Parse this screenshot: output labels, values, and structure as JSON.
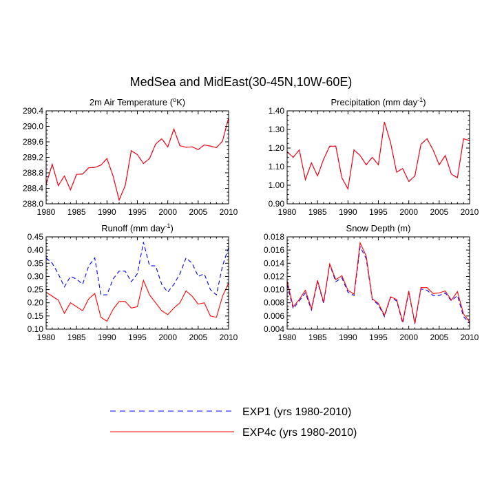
{
  "figure": {
    "main_title": "MedSea and MidEast(30-45N,10W-60E)",
    "legend": [
      {
        "label": "EXP1 (yrs 1980-2010)",
        "color": "#0000ff",
        "dash": "dashed"
      },
      {
        "label": "EXP4c (yrs 1980-2010)",
        "color": "#ff0000",
        "dash": "solid"
      }
    ]
  },
  "chart_data": [
    {
      "type": "line",
      "title_main": "2m Air Temperature (",
      "title_sup": "o",
      "title_rest": "K)",
      "x": [
        1980,
        1981,
        1982,
        1983,
        1984,
        1985,
        1986,
        1987,
        1988,
        1989,
        1990,
        1991,
        1992,
        1993,
        1994,
        1995,
        1996,
        1997,
        1998,
        1999,
        2000,
        2001,
        2002,
        2003,
        2004,
        2005,
        2006,
        2007,
        2008,
        2009,
        2010
      ],
      "xlim": [
        1980,
        2010
      ],
      "xticks": [
        1980,
        1985,
        1990,
        1995,
        2000,
        2005,
        2010
      ],
      "ylim": [
        288.0,
        290.4
      ],
      "yticks": [
        288.0,
        288.4,
        288.8,
        289.2,
        289.6,
        290.0,
        290.4
      ],
      "ytick_labels": [
        "288.0",
        "288.4",
        "288.8",
        "289.2",
        "289.6",
        "290.0",
        "290.4"
      ],
      "series": [
        {
          "name": "EXP1",
          "values": [
            288.5,
            289.02,
            288.47,
            288.72,
            288.36,
            288.76,
            288.77,
            288.93,
            288.94,
            289.0,
            289.17,
            288.72,
            288.1,
            288.47,
            289.37,
            289.27,
            289.04,
            289.17,
            289.54,
            289.68,
            289.47,
            289.93,
            289.5,
            289.46,
            289.47,
            289.4,
            289.52,
            289.49,
            289.45,
            289.62,
            290.22
          ]
        },
        {
          "name": "EXP4c",
          "values": [
            288.5,
            289.02,
            288.47,
            288.72,
            288.36,
            288.76,
            288.77,
            288.93,
            288.94,
            289.0,
            289.17,
            288.72,
            288.1,
            288.47,
            289.37,
            289.27,
            289.04,
            289.17,
            289.54,
            289.68,
            289.47,
            289.93,
            289.5,
            289.46,
            289.47,
            289.4,
            289.52,
            289.49,
            289.45,
            289.62,
            290.22
          ]
        }
      ]
    },
    {
      "type": "line",
      "title_main": "Precipitation (mm day",
      "title_sup": "-1",
      "title_rest": ")",
      "x": [
        1980,
        1981,
        1982,
        1983,
        1984,
        1985,
        1986,
        1987,
        1988,
        1989,
        1990,
        1991,
        1992,
        1993,
        1994,
        1995,
        1996,
        1997,
        1998,
        1999,
        2000,
        2001,
        2002,
        2003,
        2004,
        2005,
        2006,
        2007,
        2008,
        2009,
        2010
      ],
      "xlim": [
        1980,
        2010
      ],
      "xticks": [
        1980,
        1985,
        1990,
        1995,
        2000,
        2005,
        2010
      ],
      "ylim": [
        0.9,
        1.4
      ],
      "yticks": [
        0.9,
        1.0,
        1.1,
        1.2,
        1.3,
        1.4
      ],
      "ytick_labels": [
        "0.90",
        "1.00",
        "1.10",
        "1.20",
        "1.30",
        "1.40"
      ],
      "series": [
        {
          "name": "EXP1",
          "values": [
            1.18,
            1.15,
            1.19,
            1.03,
            1.12,
            1.05,
            1.14,
            1.21,
            1.21,
            1.04,
            0.98,
            1.19,
            1.16,
            1.11,
            1.15,
            1.11,
            1.34,
            1.23,
            1.07,
            1.09,
            1.02,
            1.05,
            1.22,
            1.25,
            1.19,
            1.11,
            1.16,
            1.06,
            1.04,
            1.25,
            1.24
          ]
        },
        {
          "name": "EXP4c",
          "values": [
            1.18,
            1.15,
            1.19,
            1.03,
            1.12,
            1.05,
            1.14,
            1.21,
            1.21,
            1.04,
            0.98,
            1.19,
            1.16,
            1.11,
            1.15,
            1.11,
            1.34,
            1.23,
            1.07,
            1.09,
            1.02,
            1.05,
            1.22,
            1.25,
            1.19,
            1.11,
            1.16,
            1.06,
            1.04,
            1.25,
            1.24
          ]
        }
      ]
    },
    {
      "type": "line",
      "title_main": "Runoff (mm day",
      "title_sup": "-1",
      "title_rest": ")",
      "x": [
        1980,
        1981,
        1982,
        1983,
        1984,
        1985,
        1986,
        1987,
        1988,
        1989,
        1990,
        1991,
        1992,
        1993,
        1994,
        1995,
        1996,
        1997,
        1998,
        1999,
        2000,
        2001,
        2002,
        2003,
        2004,
        2005,
        2006,
        2007,
        2008,
        2009,
        2010
      ],
      "xlim": [
        1980,
        2010
      ],
      "xticks": [
        1980,
        1985,
        1990,
        1995,
        2000,
        2005,
        2010
      ],
      "ylim": [
        0.1,
        0.45
      ],
      "yticks": [
        0.1,
        0.15,
        0.2,
        0.25,
        0.3,
        0.35,
        0.4,
        0.45
      ],
      "ytick_labels": [
        "0.10",
        "0.15",
        "0.20",
        "0.25",
        "0.30",
        "0.35",
        "0.40",
        "0.45"
      ],
      "series": [
        {
          "name": "EXP1",
          "values": [
            0.37,
            0.35,
            0.31,
            0.26,
            0.3,
            0.29,
            0.27,
            0.34,
            0.37,
            0.23,
            0.23,
            0.29,
            0.32,
            0.32,
            0.28,
            0.31,
            0.43,
            0.34,
            0.34,
            0.27,
            0.24,
            0.27,
            0.31,
            0.37,
            0.35,
            0.3,
            0.31,
            0.25,
            0.23,
            0.34,
            0.41
          ]
        },
        {
          "name": "EXP4c",
          "values": [
            0.24,
            0.225,
            0.21,
            0.16,
            0.2,
            0.185,
            0.17,
            0.215,
            0.235,
            0.145,
            0.13,
            0.175,
            0.205,
            0.205,
            0.18,
            0.185,
            0.285,
            0.23,
            0.2,
            0.17,
            0.155,
            0.18,
            0.2,
            0.245,
            0.225,
            0.195,
            0.2,
            0.15,
            0.145,
            0.225,
            0.275
          ]
        }
      ]
    },
    {
      "type": "line",
      "title_main": "Snow Depth (m)",
      "title_sup": "",
      "title_rest": "",
      "x": [
        1980,
        1981,
        1982,
        1983,
        1984,
        1985,
        1986,
        1987,
        1988,
        1989,
        1990,
        1991,
        1992,
        1993,
        1994,
        1995,
        1996,
        1997,
        1998,
        1999,
        2000,
        2001,
        2002,
        2003,
        2004,
        2005,
        2006,
        2007,
        2008,
        2009,
        2010
      ],
      "xlim": [
        1980,
        2010
      ],
      "xticks": [
        1980,
        1985,
        1990,
        1995,
        2000,
        2005,
        2010
      ],
      "ylim": [
        0.004,
        0.018
      ],
      "yticks": [
        0.004,
        0.006,
        0.008,
        0.01,
        0.012,
        0.014,
        0.016,
        0.018
      ],
      "ytick_labels": [
        "0.004",
        "0.006",
        "0.008",
        "0.010",
        "0.012",
        "0.014",
        "0.016",
        "0.018"
      ],
      "series": [
        {
          "name": "EXP1",
          "values": [
            0.0108,
            0.0071,
            0.0083,
            0.0095,
            0.0069,
            0.0112,
            0.0079,
            0.0138,
            0.0112,
            0.0118,
            0.0096,
            0.0091,
            0.0165,
            0.0147,
            0.0085,
            0.0077,
            0.0059,
            0.0088,
            0.0083,
            0.0049,
            0.0096,
            0.0048,
            0.0101,
            0.0099,
            0.0091,
            0.0091,
            0.0095,
            0.0083,
            0.0091,
            0.0059,
            0.0049
          ]
        },
        {
          "name": "EXP4c",
          "values": [
            0.0113,
            0.0074,
            0.0085,
            0.0099,
            0.0071,
            0.0114,
            0.0081,
            0.0139,
            0.0115,
            0.0121,
            0.0099,
            0.0093,
            0.0171,
            0.0151,
            0.0086,
            0.0079,
            0.0061,
            0.0089,
            0.0085,
            0.0051,
            0.0098,
            0.0049,
            0.0103,
            0.0103,
            0.0094,
            0.0095,
            0.0098,
            0.0084,
            0.0097,
            0.0063,
            0.0051
          ]
        }
      ]
    }
  ]
}
